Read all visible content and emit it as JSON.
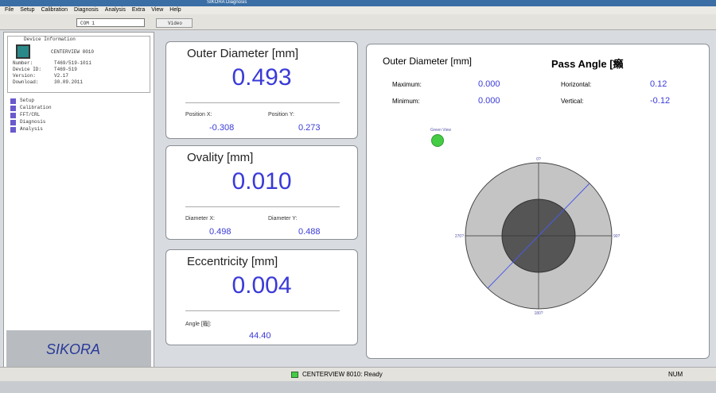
{
  "window": {
    "title": "SIKORA Diagnosis",
    "menu": [
      "File",
      "Setup",
      "Calibration",
      "Diagnosis",
      "Analysis",
      "Extra",
      "View",
      "Help"
    ],
    "port": "COM 1",
    "tab": "Video"
  },
  "device": {
    "heading": "Device Information",
    "model": "CENTERVIEW 8010",
    "fields": [
      [
        "Number:",
        "T469/519-1011"
      ],
      [
        "Device ID:",
        "T469-519"
      ],
      [
        "Version:",
        "V2.17"
      ],
      [
        "Download:",
        "30.09.2011"
      ]
    ],
    "tree": [
      "Setup",
      "Calibration",
      "FFT/CRL",
      "Diagnosis",
      "Analysis"
    ],
    "logo": "SIKORA"
  },
  "cards": [
    {
      "title": "Outer Diameter  [mm]",
      "value": "0.493",
      "fields": [
        [
          "Position X:",
          "-0.308"
        ],
        [
          "Position Y:",
          "0.273"
        ]
      ]
    },
    {
      "title": "Ovality  [mm]",
      "value": "0.010",
      "fields": [
        [
          "Diameter X:",
          "0.498"
        ],
        [
          "Diameter Y:",
          "0.488"
        ]
      ]
    },
    {
      "title": "Eccentricity  [mm]",
      "value": "0.004",
      "fields": [
        [
          "Angle [籀]:",
          "44.40"
        ]
      ]
    }
  ],
  "view": {
    "diameter_title": "Outer Diameter [mm]",
    "angle_title": "Pass Angle [癩",
    "diameter_fields": [
      [
        "Maximum:",
        "0.000"
      ],
      [
        "Minimum:",
        "0.000"
      ]
    ],
    "angle_fields": [
      [
        "Horizontal:",
        "0.12"
      ],
      [
        "Vertical:",
        "-0.12"
      ]
    ],
    "green_view": "Green View",
    "angles": [
      "0?",
      "90?",
      "180?",
      "270?"
    ]
  },
  "status": {
    "text": "CENTERVIEW 8010:  Ready",
    "num": "NUM"
  }
}
